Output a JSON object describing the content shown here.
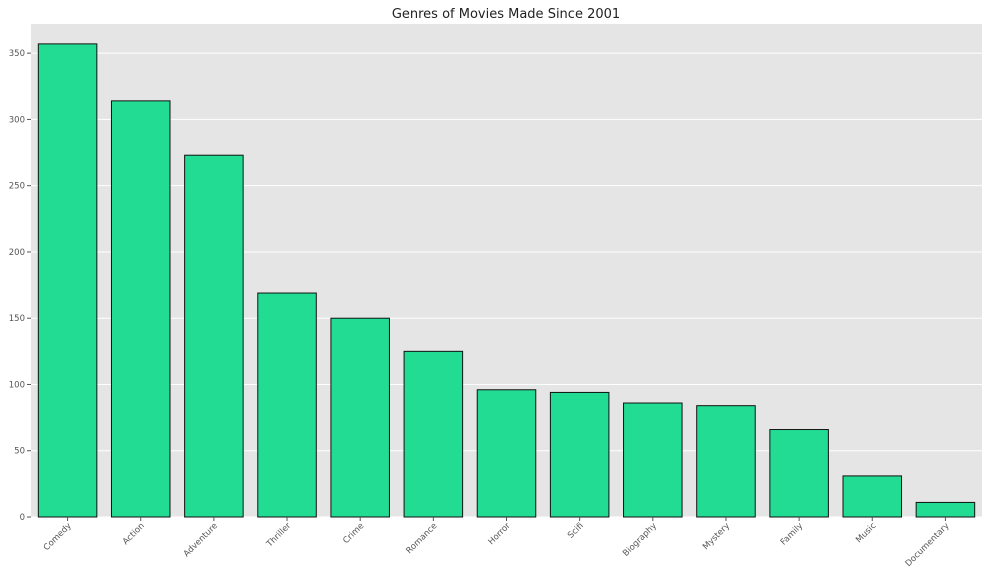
{
  "chart_data": {
    "type": "bar",
    "title": "Genres of Movies Made Since 2001",
    "xlabel": "",
    "ylabel": "",
    "categories": [
      "Comedy",
      "Action",
      "Adventure",
      "Thriller",
      "Crime",
      "Romance",
      "Horror",
      "Scifi",
      "Biography",
      "Mystery",
      "Family",
      "Music",
      "Documentary"
    ],
    "values": [
      357,
      314,
      273,
      169,
      150,
      125,
      96,
      94,
      86,
      84,
      66,
      31,
      11
    ],
    "ylim": [
      0,
      372
    ],
    "yticks": [
      0,
      50,
      100,
      150,
      200,
      250,
      300,
      350
    ],
    "grid": true,
    "bar_color": "#22dc94",
    "bar_edge_color": "#111111",
    "background_color": "#e5e5e5"
  }
}
